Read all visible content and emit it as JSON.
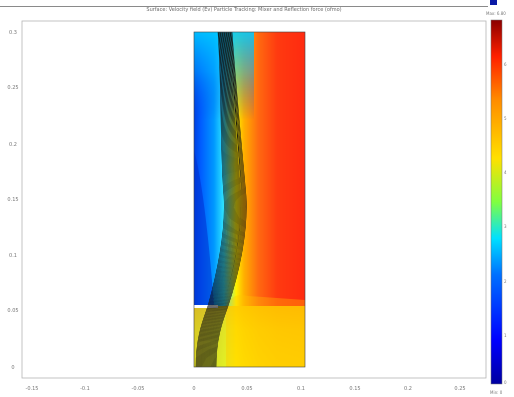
{
  "title": "Surface: Velocity field (Ev)  Particle Tracking: Mixer and Reflection force (ofmo)",
  "colorbar": {
    "max_label": "Max: 6.80",
    "min_label": "Min: 0",
    "tick_labels": [
      "6",
      "5",
      "4",
      "3",
      "2",
      "1",
      "0"
    ],
    "colors": [
      "#8b0000",
      "#ff2000",
      "#ff8c00",
      "#ffe000",
      "#80ff40",
      "#00e0ff",
      "#0070ff",
      "#0000a0"
    ]
  },
  "axes": {
    "x_tick_labels": [
      "-0.15",
      "-0.1",
      "-0.05",
      "0",
      "0.05",
      "0.1",
      "0.15",
      "0.2",
      "0.25"
    ],
    "y_tick_labels": [
      "0.3",
      "0.25",
      "0.2",
      "0.15",
      "0.1",
      "0.05",
      "0"
    ]
  }
}
